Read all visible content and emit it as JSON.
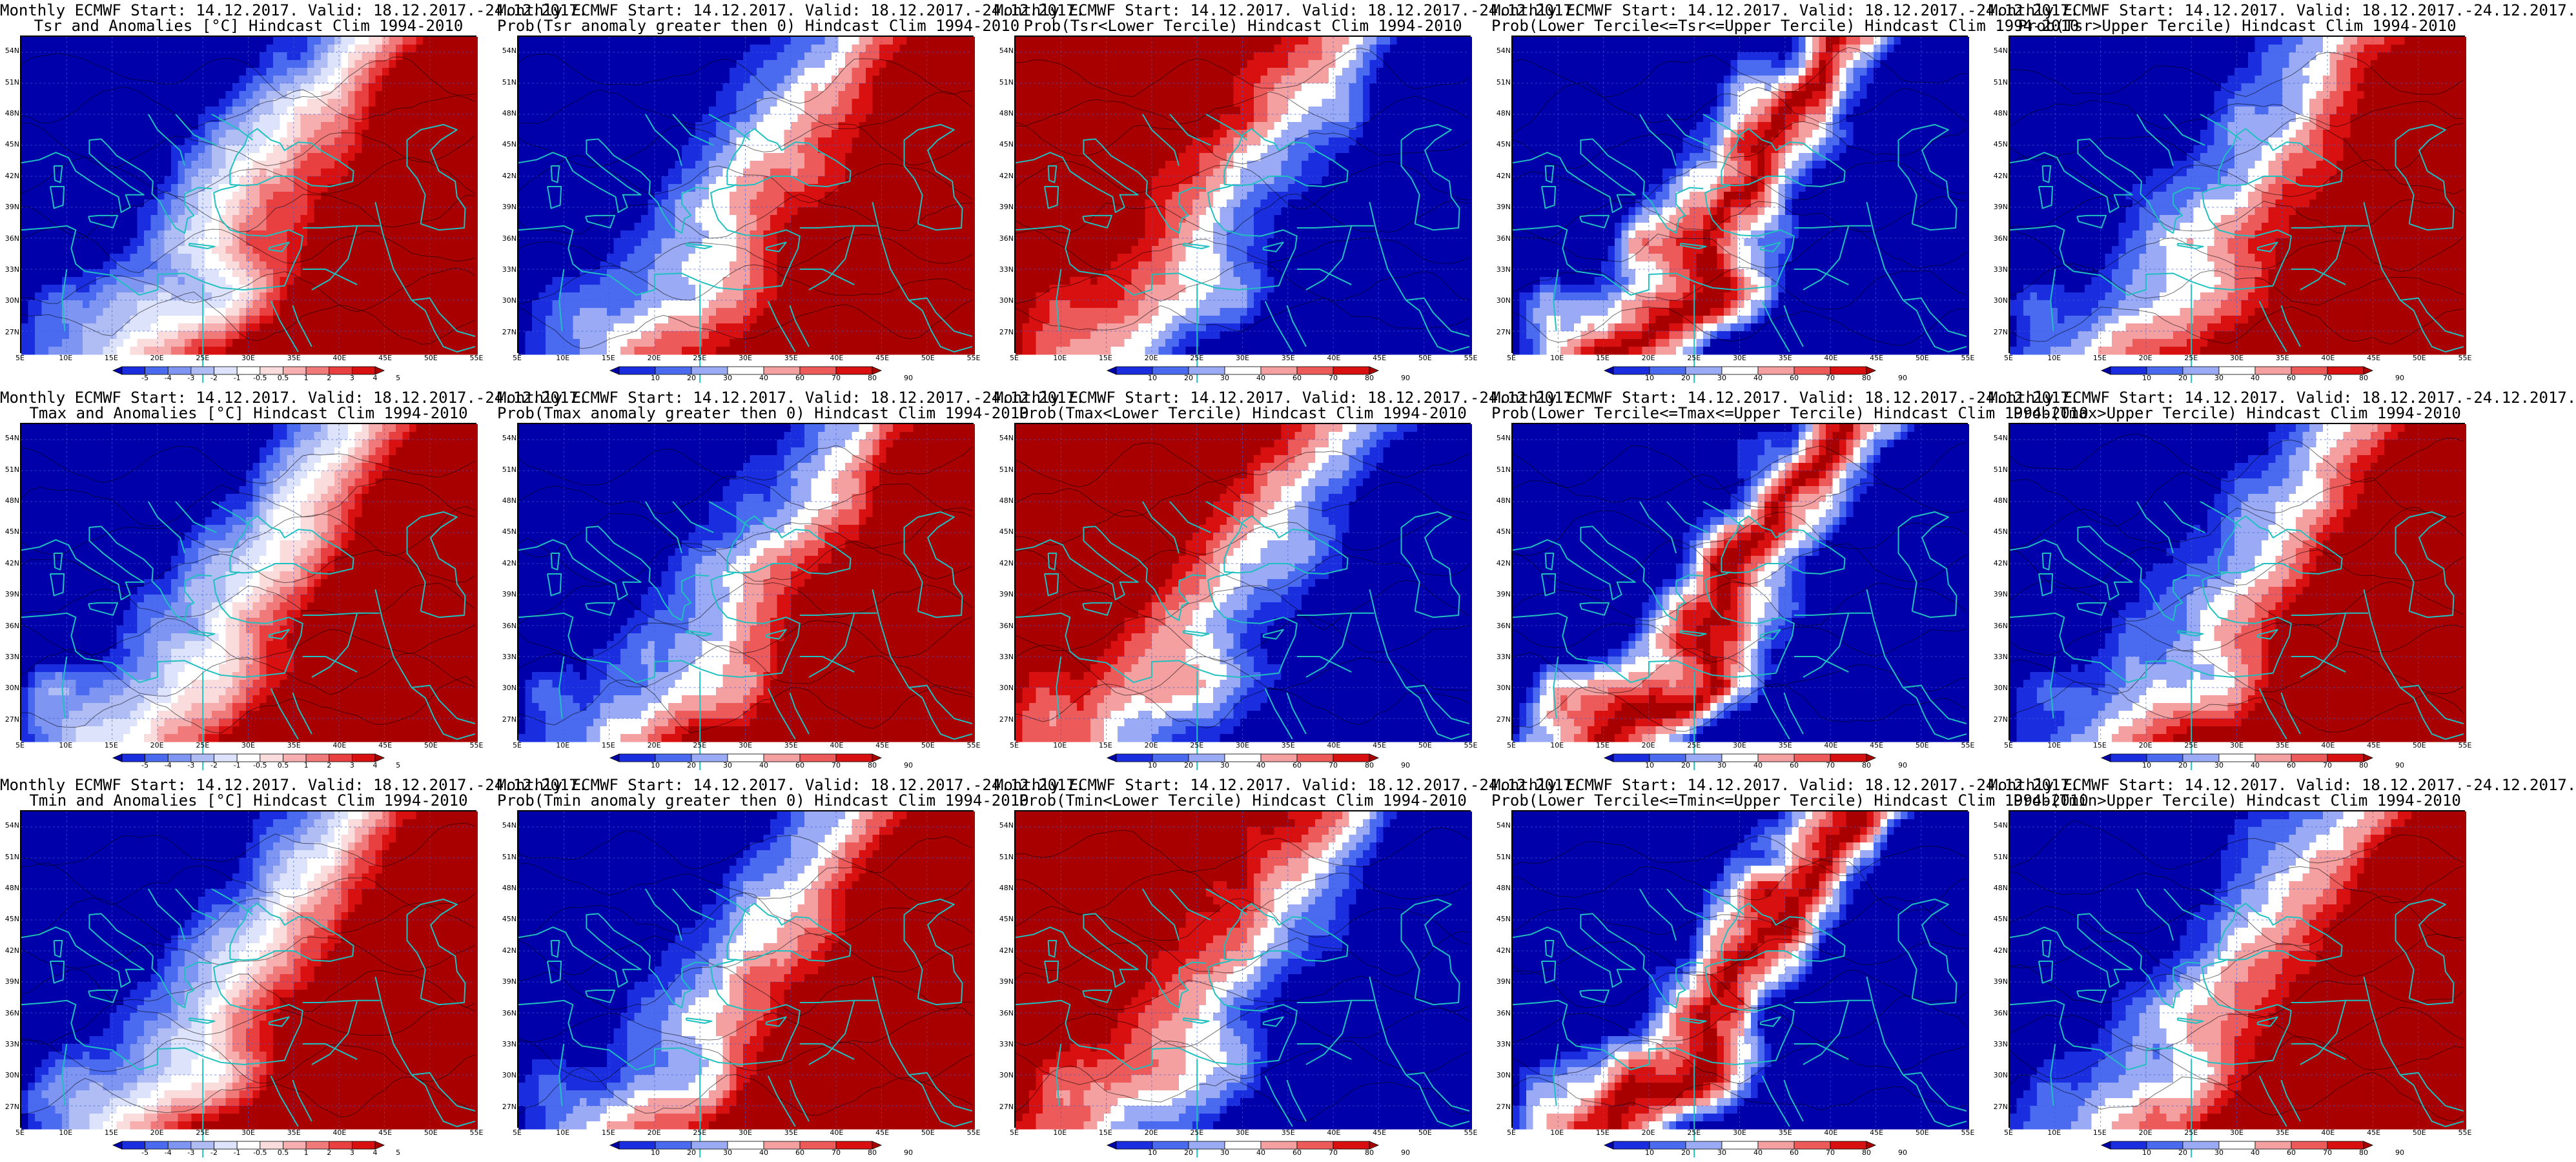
{
  "figure": {
    "columns": 5,
    "rows": 3,
    "panels": [
      {
        "title_line1": "Monthly ECMWF Start: 14.12.2017. Valid: 18.12.2017.-24.12.2017.",
        "title_line2": "Tsr and Anomalies [°C] Hindcast Clim 1994-2010",
        "variable": "Tsr",
        "product": "anomaly",
        "colorbar": "anomaly"
      },
      {
        "title_line1": "Monthly ECMWF Start: 14.12.2017. Valid: 18.12.2017.-24.12.2017.",
        "title_line2": "Prob(Tsr anomaly greater then 0) Hindcast Clim 1994-2010",
        "variable": "Tsr",
        "product": "prob_gt0",
        "colorbar": "prob"
      },
      {
        "title_line1": "Monthly ECMWF Start: 14.12.2017. Valid: 18.12.2017.-24.12.2017.",
        "title_line2": "Prob(Tsr<Lower Tercile) Hindcast Clim 1994-2010",
        "variable": "Tsr",
        "product": "lower",
        "colorbar": "prob"
      },
      {
        "title_line1": "Monthly ECMWF Start: 14.12.2017. Valid: 18.12.2017.-24.12.2017.",
        "title_line2": "Prob(Lower Tercile<=Tsr<=Upper Tercile) Hindcast Clim 1994-2010",
        "variable": "Tsr",
        "product": "middle",
        "colorbar": "prob"
      },
      {
        "title_line1": "Monthly ECMWF Start: 14.12.2017. Valid: 18.12.2017.-24.12.2017.",
        "title_line2": "Prob(Tsr>Upper Tercile) Hindcast Clim 1994-2010",
        "variable": "Tsr",
        "product": "upper",
        "colorbar": "prob"
      },
      {
        "title_line1": "Monthly ECMWF Start: 14.12.2017. Valid: 18.12.2017.-24.12.2017.",
        "title_line2": "Tmax and Anomalies [°C] Hindcast Clim 1994-2010",
        "variable": "Tmax",
        "product": "anomaly",
        "colorbar": "anomaly"
      },
      {
        "title_line1": "Monthly ECMWF Start: 14.12.2017. Valid: 18.12.2017.-24.12.2017.",
        "title_line2": "Prob(Tmax anomaly greater then 0) Hindcast Clim 1994-2010",
        "variable": "Tmax",
        "product": "prob_gt0",
        "colorbar": "prob"
      },
      {
        "title_line1": "Monthly ECMWF Start: 14.12.2017. Valid: 18.12.2017.-24.12.2017.",
        "title_line2": "Prob(Tmax<Lower Tercile) Hindcast Clim 1994-2010",
        "variable": "Tmax",
        "product": "lower",
        "colorbar": "prob"
      },
      {
        "title_line1": "Monthly ECMWF Start: 14.12.2017. Valid: 18.12.2017.-24.12.2017.",
        "title_line2": "Prob(Lower Tercile<=Tmax<=Upper Tercile) Hindcast Clim 1994-2010",
        "variable": "Tmax",
        "product": "middle",
        "colorbar": "prob"
      },
      {
        "title_line1": "Monthly ECMWF Start: 14.12.2017. Valid: 18.12.2017.-24.12.2017.",
        "title_line2": "Prob(Tmax>Upper Tercile) Hindcast Clim 1994-2010",
        "variable": "Tmax",
        "product": "upper",
        "colorbar": "prob"
      },
      {
        "title_line1": "Monthly ECMWF Start: 14.12.2017. Valid: 18.12.2017.-24.12.2017.",
        "title_line2": "Tmin and Anomalies [°C] Hindcast Clim 1994-2010",
        "variable": "Tmin",
        "product": "anomaly",
        "colorbar": "anomaly"
      },
      {
        "title_line1": "Monthly ECMWF Start: 14.12.2017. Valid: 18.12.2017.-24.12.2017.",
        "title_line2": "Prob(Tmin anomaly greater then 0) Hindcast Clim 1994-2010",
        "variable": "Tmin",
        "product": "prob_gt0",
        "colorbar": "prob"
      },
      {
        "title_line1": "Monthly ECMWF Start: 14.12.2017. Valid: 18.12.2017.-24.12.2017.",
        "title_line2": "Prob(Tmin<Lower Tercile) Hindcast Clim 1994-2010",
        "variable": "Tmin",
        "product": "lower",
        "colorbar": "prob"
      },
      {
        "title_line1": "Monthly ECMWF Start: 14.12.2017. Valid: 18.12.2017.-24.12.2017.",
        "title_line2": "Prob(Lower Tercile<=Tmin<=Upper Tercile) Hindcast Clim 1994-2010",
        "variable": "Tmin",
        "product": "middle",
        "colorbar": "prob"
      },
      {
        "title_line1": "Monthly ECMWF Start: 14.12.2017. Valid: 18.12.2017.-24.12.2017.",
        "title_line2": "Prob(Tmin>Upper Tercile) Hindcast Clim 1994-2010",
        "variable": "Tmin",
        "product": "upper",
        "colorbar": "prob"
      }
    ]
  },
  "map": {
    "lon_range": [
      5,
      55
    ],
    "lat_range": [
      25,
      55.5
    ],
    "lon_labels": [
      "5E",
      "10E",
      "15E",
      "20E",
      "25E",
      "30E",
      "35E",
      "40E",
      "45E",
      "50E",
      "55E"
    ],
    "lat_labels": [
      "27N",
      "30N",
      "33N",
      "36N",
      "39N",
      "42N",
      "45N",
      "48N",
      "51N",
      "54N"
    ],
    "coastline_color": "#20c0c0",
    "contour_color": "#000000"
  },
  "colorbars": {
    "anomaly": {
      "ticks": [
        "-5",
        "-4",
        "-3",
        "-2",
        "-1",
        "-0.5",
        "0.5",
        "1",
        "2",
        "3",
        "4",
        "5"
      ],
      "colors": [
        "#0000aa",
        "#1a2ee0",
        "#4a6af0",
        "#7f95f2",
        "#b0bdf5",
        "#dde3fa",
        "#ffffff",
        "#fadcdc",
        "#f6aeae",
        "#f07a7a",
        "#e84040",
        "#d81010",
        "#a80000"
      ]
    },
    "prob": {
      "ticks": [
        "10",
        "20",
        "30",
        "40",
        "60",
        "70",
        "80",
        "90"
      ],
      "colors": [
        "#0000aa",
        "#1a2ee0",
        "#4a6af0",
        "#9aaaf4",
        "#ffffff",
        "#f4a0a0",
        "#ec5a5a",
        "#d81010",
        "#a80000"
      ]
    }
  }
}
